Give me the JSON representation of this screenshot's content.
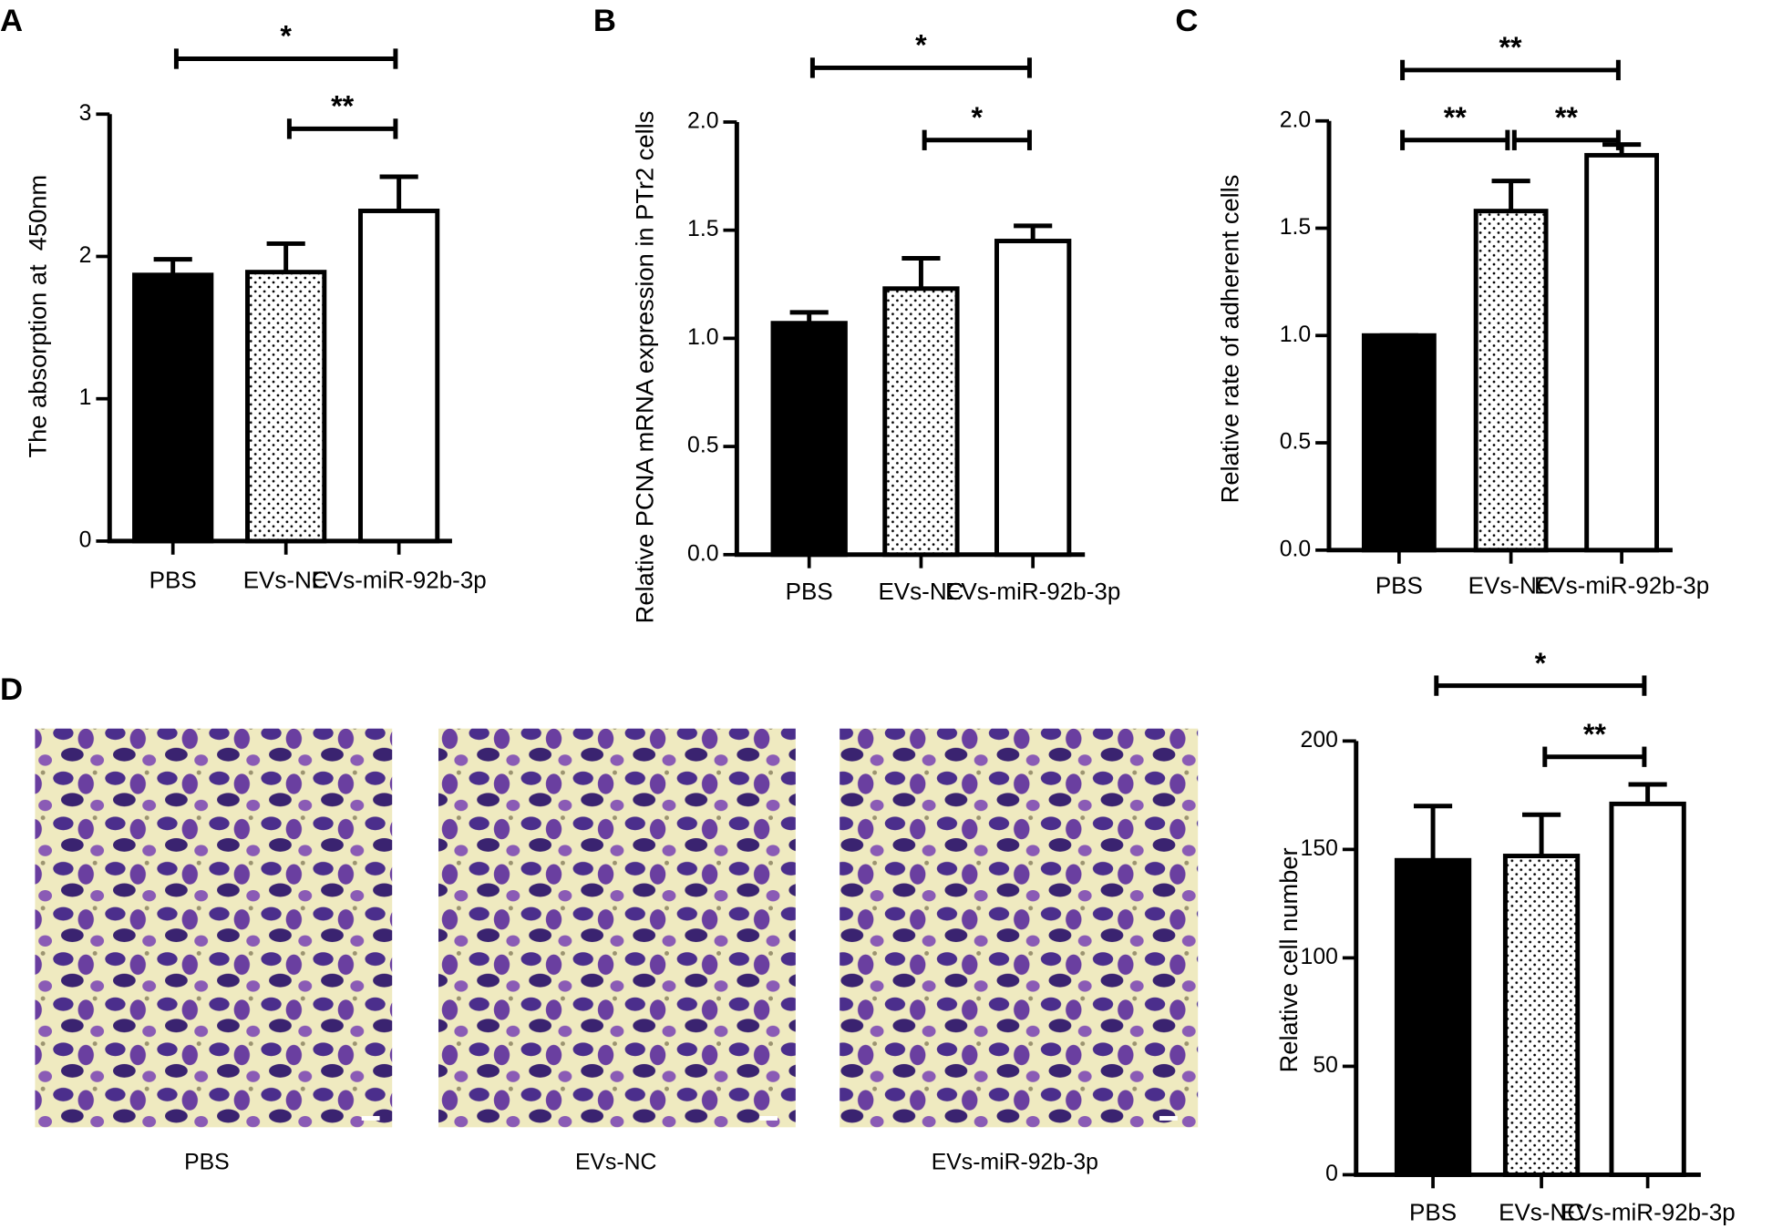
{
  "chart_data": [
    {
      "type": "bar",
      "panel": "A",
      "ylabel": "The absorption at  450nm",
      "categories": [
        "PBS",
        "EVs-NC",
        "EVs-miR-92b-3p"
      ],
      "values": [
        1.87,
        1.89,
        2.32
      ],
      "errors": [
        0.11,
        0.2,
        0.24
      ],
      "colors": [
        "#000000",
        "#ffffff",
        "#ffffff"
      ],
      "dotted": [
        false,
        true,
        false
      ],
      "ylim": [
        0,
        3
      ],
      "yticks": [
        0,
        1,
        2,
        3
      ],
      "significance": [
        {
          "from": 0,
          "to": 2,
          "label": "*"
        },
        {
          "from": 1,
          "to": 2,
          "label": "**"
        }
      ]
    },
    {
      "type": "bar",
      "panel": "B",
      "ylabel": "Relative PCNA mRNA expression in PTr2 cells",
      "categories": [
        "PBS",
        "EVs-NC",
        "EVs-miR-92b-3p"
      ],
      "values": [
        1.07,
        1.23,
        1.45
      ],
      "errors": [
        0.05,
        0.14,
        0.07
      ],
      "colors": [
        "#000000",
        "#ffffff",
        "#ffffff"
      ],
      "dotted": [
        false,
        true,
        false
      ],
      "ylim": [
        0,
        2
      ],
      "yticks": [
        {
          "value": 0,
          "label": "0.0"
        },
        0.5,
        {
          "value": 1,
          "label": "1.0"
        },
        1.5,
        {
          "value": 2,
          "label": "2.0"
        }
      ],
      "significance": [
        {
          "from": 0,
          "to": 2,
          "label": "*"
        },
        {
          "from": 1,
          "to": 2,
          "label": "*"
        }
      ]
    },
    {
      "type": "bar",
      "panel": "C",
      "ylabel": "Relative rate of adherent cells",
      "categories": [
        "PBS",
        "EVs-NC",
        "EVs-miR-92b-3p"
      ],
      "values": [
        1.0,
        1.58,
        1.84
      ],
      "errors": [
        0,
        0.14,
        0.05
      ],
      "colors": [
        "#000000",
        "#ffffff",
        "#ffffff"
      ],
      "dotted": [
        false,
        true,
        false
      ],
      "ylim": [
        0,
        2
      ],
      "yticks": [
        {
          "value": 0,
          "label": "0.0"
        },
        0.5,
        {
          "value": 1,
          "label": "1.0"
        },
        1.5,
        {
          "value": 2,
          "label": "2.0"
        }
      ],
      "significance": [
        {
          "from": 0,
          "to": 2,
          "label": "**"
        },
        {
          "from": 0,
          "to": 1,
          "label": "**"
        },
        {
          "from": 1,
          "to": 2,
          "label": "**"
        }
      ]
    },
    {
      "type": "bar",
      "panel": "D",
      "ylabel": "Relative cell number",
      "categories": [
        "PBS",
        "EVs-NC",
        "EVs-miR-92b-3p"
      ],
      "values": [
        145,
        147,
        171
      ],
      "errors": [
        25,
        19,
        9
      ],
      "colors": [
        "#000000",
        "#ffffff",
        "#ffffff"
      ],
      "dotted": [
        false,
        true,
        false
      ],
      "ylim": [
        0,
        200
      ],
      "yticks": [
        0,
        50,
        100,
        150,
        200
      ],
      "significance": [
        {
          "from": 0,
          "to": 2,
          "label": "*"
        },
        {
          "from": 1,
          "to": 2,
          "label": "**"
        }
      ]
    }
  ],
  "micrographs": {
    "captions": [
      "PBS",
      "EVs-NC",
      "EVs-miR-92b-3p"
    ]
  }
}
